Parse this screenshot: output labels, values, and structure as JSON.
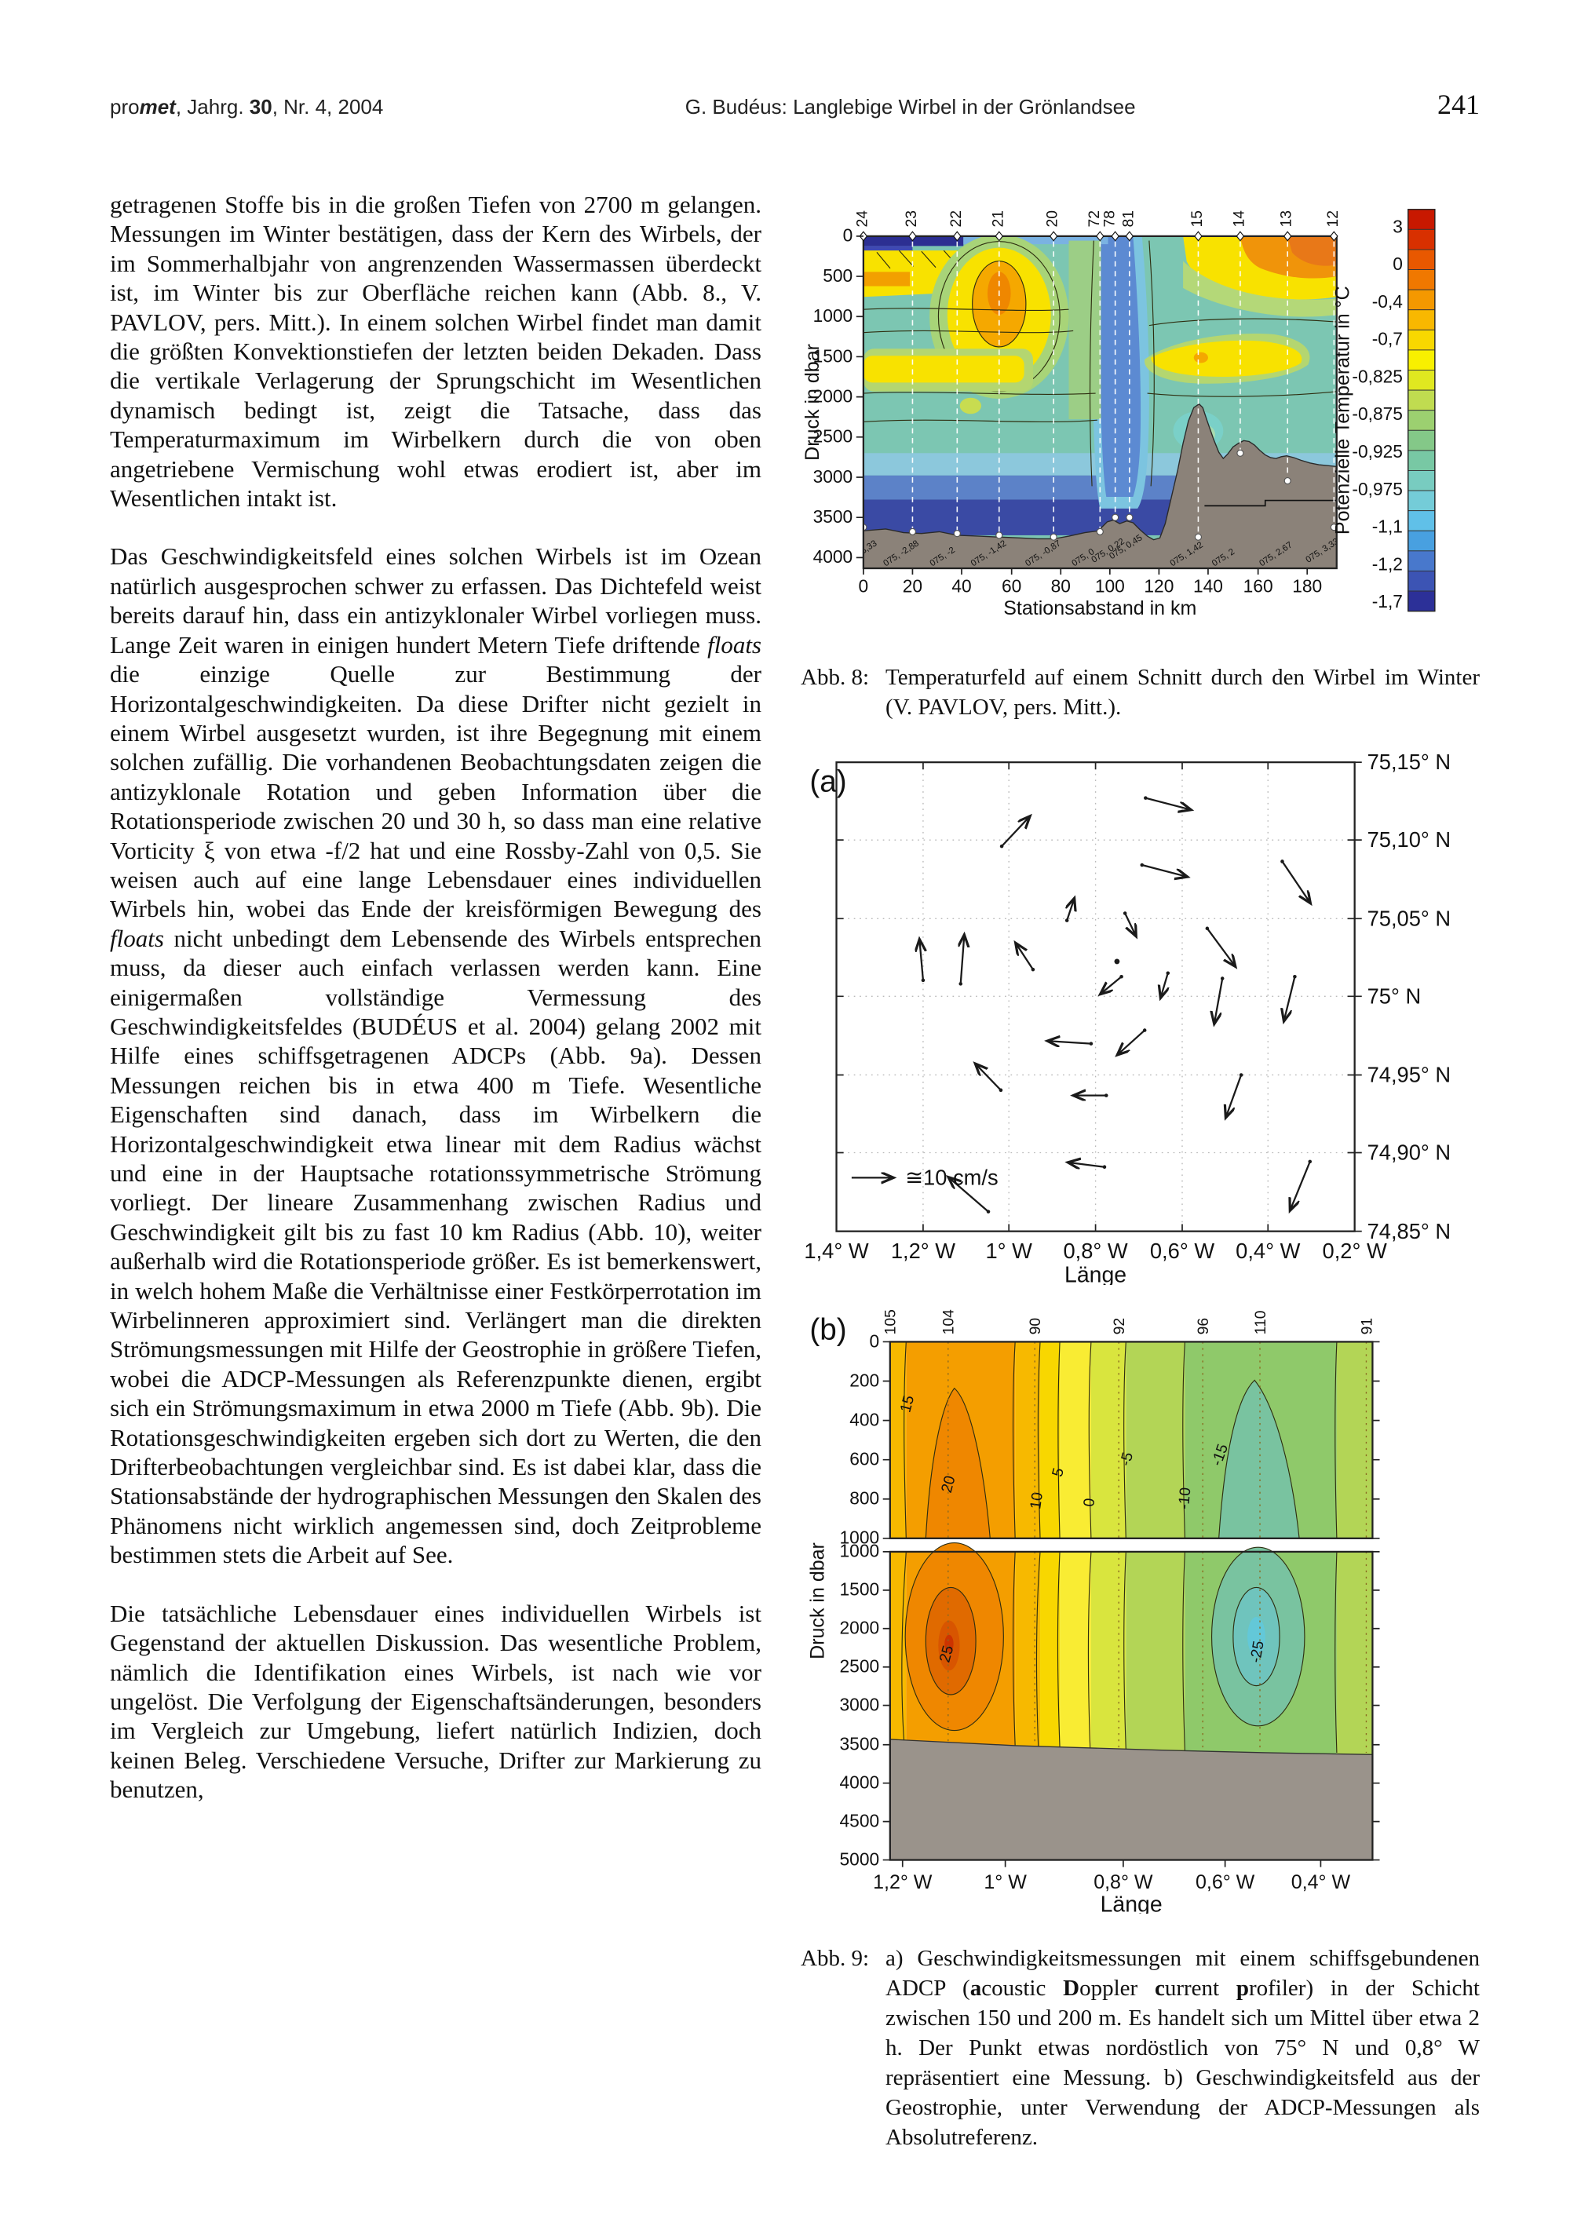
{
  "header": {
    "journal_segments": [
      {
        "t": "pro"
      },
      {
        "t": "met",
        "b": 1,
        "i": 1
      },
      {
        "t": ", Jahrg. "
      },
      {
        "t": "30",
        "b": 1
      },
      {
        "t": ", Nr. 4, 2004"
      }
    ],
    "running_title": "G. Budéus: Langlebige Wirbel in der Grönlandsee",
    "page_number": "241"
  },
  "body": {
    "p1": "getragenen Stoffe bis in die großen Tiefen von 2700 m gelangen. Messungen im Winter bestätigen, dass der Kern des Wirbels, der im Sommerhalbjahr von angrenzenden Wassermassen überdeckt ist, im Winter bis zur Oberfläche reichen kann (Abb. 8., V. PAVLOV, pers. Mitt.). In einem solchen Wirbel findet man damit die größten Konvektionstiefen der letzten beiden Dekaden. Dass die vertikale Verlagerung der Sprungschicht im Wesentlichen dynamisch bedingt ist, zeigt die Tatsache, dass das Temperaturmaximum im Wirbelkern durch die von oben angetriebene Vermischung wohl etwas erodiert ist, aber im Wesentlichen intakt ist.",
    "p2_segments": [
      {
        "t": "Das Geschwindigkeitsfeld eines solchen Wirbels ist im Ozean natürlich ausgesprochen schwer zu erfassen. Das Dichtefeld weist bereits darauf hin, dass ein antizyklonaler Wirbel vorliegen muss. Lange Zeit waren in einigen hundert Metern Tiefe driftende "
      },
      {
        "t": "floats",
        "i": 1
      },
      {
        "t": " die einzige Quelle zur Bestimmung der Horizontalgeschwindigkeiten. Da diese Drifter nicht gezielt in einem Wirbel ausgesetzt wurden, ist ihre Begegnung mit einem solchen zufällig. Die vorhandenen Beobachtungsdaten zeigen die antizyklonale Rotation und geben Information über die Rotationsperiode zwischen 20 und 30 h, so dass man eine relative Vorticity ξ von etwa -f/2 hat und eine Rossby-Zahl von 0,5. Sie weisen auch auf eine lange Lebensdauer eines individuellen Wirbels hin, wobei das Ende der kreisförmigen Bewegung des "
      },
      {
        "t": "floats",
        "i": 1
      },
      {
        "t": " nicht unbedingt dem Lebensende des Wirbels entsprechen muss, da dieser auch einfach verlassen werden kann. Eine einigermaßen vollständige Vermessung des Geschwindigkeitsfeldes (BUDÉUS et al. 2004) gelang 2002 mit Hilfe eines schiffsgetragenen ADCPs (Abb. 9a). Dessen Messungen reichen bis in etwa 400 m Tiefe. Wesentliche Eigenschaften sind danach, dass im Wirbelkern die Horizontalgeschwindigkeit etwa linear mit dem Radius wächst und eine in der Hauptsache rotationssymmetrische Strömung vorliegt. Der lineare Zusammenhang zwischen Radius und Geschwindigkeit gilt bis zu fast 10 km Radius (Abb. 10), weiter außerhalb wird die Rotationsperiode größer. Es ist bemerkenswert, in welch hohem Maße die Verhältnisse einer Festkörperrotation im Wirbelinneren approximiert sind. Verlängert man die direkten Strömungsmessungen mit Hilfe der Geostrophie in größere Tiefen, wobei die ADCP-Messungen als Referenzpunkte dienen, ergibt sich ein Strömungsmaximum in etwa 2000 m Tiefe (Abb. 9b). Die Rotationsgeschwindigkeiten ergeben sich dort zu Werten, die den Drifterbeobachtungen vergleichbar sind. Es ist dabei klar, dass die Stationsabstände der hydrographischen Messungen den Skalen des Phänomens nicht wirklich angemessen sind, doch Zeitprobleme bestimmen stets die Arbeit auf See."
      }
    ],
    "p3": "Die tatsächliche Lebensdauer eines individuellen Wirbels ist Gegenstand der aktuellen Diskussion. Das wesentliche Problem, nämlich die Identifikation eines Wirbels, ist nach wie vor ungelöst. Die Verfolgung der Eigenschaftsänderungen, besonders im Vergleich zur Umgebung, liefert natürlich Indizien, doch keinen Beleg. Verschiedene Versuche, Drifter zur Markierung zu benutzen,"
  },
  "captions": {
    "fig8_label": "Abb. 8:",
    "fig8_text": "Temperaturfeld auf einem Schnitt durch den Wirbel im Winter (V. PAVLOV, pers. Mitt.).",
    "fig9_label": "Abb. 9:",
    "fig9_segments": [
      {
        "t": "a) Geschwindigkeitsmessungen mit einem schiffsgebundenen ADCP ("
      },
      {
        "t": "a",
        "b": 1
      },
      {
        "t": "coustic "
      },
      {
        "t": "D",
        "b": 1
      },
      {
        "t": "oppler "
      },
      {
        "t": "c",
        "b": 1
      },
      {
        "t": "urrent "
      },
      {
        "t": "p",
        "b": 1
      },
      {
        "t": "rofiler) in der Schicht zwischen 150 und 200 m. Es handelt sich um Mittel über etwa 2 h. Der Punkt etwas nordöstlich von 75° N und 0,8° W repräsentiert eine Messung. b) Geschwindigkeitsfeld aus der Geostrophie, unter Verwendung der  ADCP-Messungen als Absolutreferenz."
      }
    ]
  },
  "chart_data": [
    {
      "id": "fig8",
      "type": "heatmap",
      "title": "Temperaturfeld auf einem Schnitt durch den Wirbel im Winter",
      "xlabel": "Stationsabstand in km",
      "ylabel": "Druck in dbar",
      "xlim": [
        0,
        192
      ],
      "ylim": [
        0,
        4000
      ],
      "x_ticks": [
        "0",
        "20",
        "40",
        "60",
        "80",
        "100",
        "120",
        "140",
        "160",
        "180"
      ],
      "y_ticks": [
        "0",
        "500",
        "1000",
        "1500",
        "2000",
        "2500",
        "3000",
        "3500",
        "4000"
      ],
      "stations": [
        "24",
        "23",
        "22",
        "21",
        "20",
        "72",
        "78",
        "81",
        "15",
        "14",
        "13",
        "12"
      ],
      "position_labels": [
        "075, -3,33",
        "075, -2,88",
        "075, -2",
        "075, -1,42",
        "075, -0,87",
        "075, 0",
        "075, 0,22",
        "075, 0,45",
        "075, 1,42",
        "075, 2",
        "075, 2,67",
        "075, 3,33"
      ],
      "colorbar": {
        "title": "Potenzielle Temperatur in °C",
        "labels": [
          "3",
          "0",
          "-0,4",
          "-0,7",
          "-0,825",
          "-0,875",
          "-0,925",
          "-0,975",
          "-1,1",
          "-1,2",
          "-1,7"
        ],
        "colors": [
          "#c81800",
          "#d83000",
          "#e85800",
          "#f07800",
          "#f49800",
          "#f8b800",
          "#f8d800",
          "#f8f000",
          "#e0e820",
          "#c0dc50",
          "#9cd070",
          "#84c888",
          "#78c8a4",
          "#78ccc0",
          "#74ccd8",
          "#60c0e8",
          "#48a0e0",
          "#4878cc",
          "#3c54b4",
          "#2c3098"
        ]
      }
    },
    {
      "id": "fig9a",
      "type": "scatter",
      "subtype": "vector-field",
      "panel_label": "(a)",
      "xlabel": "Länge",
      "lat_labels": [
        "75,15° N",
        "75,10° N",
        "75,05° N",
        "75° N",
        "74,95° N",
        "74,90° N",
        "74,85° N"
      ],
      "lon_labels": [
        "1,4° W",
        "1,2° W",
        "1° W",
        "0,8° W",
        "0,6° W",
        "0,4° W",
        "0,2° W"
      ],
      "legend": "≅10 cm/s",
      "rotation_sense": "anticyclonic (clockwise)",
      "arrows": [
        [
          386,
          55,
          436,
          68
        ],
        [
          225,
          109,
          256,
          76
        ],
        [
          382,
          130,
          432,
          143
        ],
        [
          539,
          126,
          570,
          172
        ],
        [
          298,
          192,
          306,
          168
        ],
        [
          363,
          184,
          375,
          209
        ],
        [
          455,
          201,
          486,
          243
        ],
        [
          137,
          259,
          133,
          214
        ],
        [
          179,
          263,
          183,
          209
        ],
        [
          260,
          247,
          241,
          218
        ],
        [
          359,
          255,
          336,
          274
        ],
        [
          411,
          251,
          403,
          278
        ],
        [
          472,
          257,
          463,
          307
        ],
        [
          553,
          255,
          541,
          304
        ],
        [
          325,
          330,
          277,
          327
        ],
        [
          385,
          315,
          355,
          342
        ],
        [
          224,
          382,
          196,
          353
        ],
        [
          342,
          388,
          306,
          388
        ],
        [
          493,
          365,
          476,
          412
        ],
        [
          340,
          468,
          300,
          463
        ],
        [
          210,
          518,
          166,
          480
        ],
        [
          570,
          462,
          548,
          516
        ]
      ],
      "dot": [
        354,
        238
      ]
    },
    {
      "id": "fig9b",
      "type": "heatmap",
      "panel_label": "(b)",
      "xlabel": "Länge",
      "ylabel": "Druck in dbar",
      "stations": [
        "105",
        "104",
        "90",
        "92",
        "96",
        "110",
        "91"
      ],
      "x_ticks": [
        "1,2° W",
        "1° W",
        "0,8° W",
        "0,6° W",
        "0,4° W"
      ],
      "upper_y_ticks": [
        "0",
        "200",
        "400",
        "600",
        "800",
        "1000"
      ],
      "lower_y_ticks": [
        "1000",
        "1500",
        "2000",
        "2500",
        "3000",
        "3500",
        "4000",
        "4500",
        "5000"
      ],
      "upper_contour_labels": [
        "15",
        "20",
        "10",
        "5",
        "0",
        "-5",
        "-10",
        "-15"
      ],
      "lower_contour_labels": [
        "25",
        "-25"
      ]
    }
  ]
}
